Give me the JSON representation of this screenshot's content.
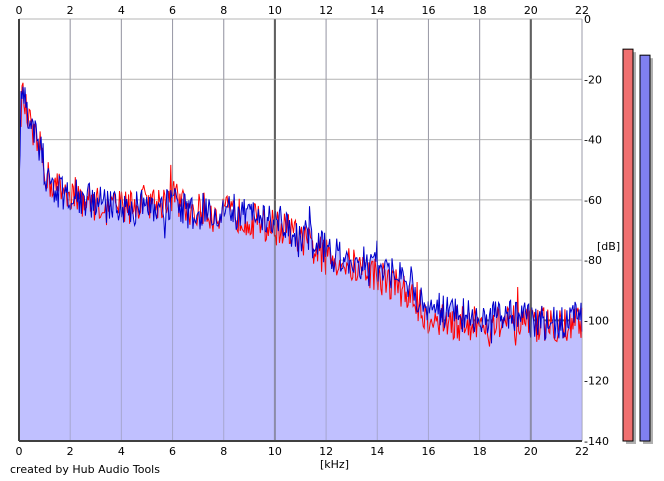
{
  "chart_data": {
    "type": "area",
    "x_unit_label": "[kHz]",
    "y_unit_label": "[dB]",
    "xlim": [
      0,
      22
    ],
    "ylim": [
      -140,
      0
    ],
    "x_ticks": [
      0,
      2,
      4,
      6,
      8,
      10,
      12,
      14,
      16,
      18,
      20,
      22
    ],
    "x_tick_labels": [
      "0",
      "2",
      "4",
      "6",
      "8",
      "10",
      "12",
      "14",
      "16",
      "18",
      "20",
      "22"
    ],
    "y_ticks": [
      0,
      -20,
      -40,
      -60,
      -80,
      -100,
      -120,
      -140
    ],
    "y_tick_labels": [
      "0",
      "-20",
      "-40",
      "-60",
      "-80",
      "-100",
      "-120",
      "-140"
    ],
    "grid": true,
    "x_axis_top": true,
    "y_axis_right": true,
    "series": [
      {
        "color": "#ff0000",
        "x": [
          0,
          0.1,
          0.2,
          0.3,
          0.5,
          0.7,
          0.9,
          1.0,
          1.2,
          1.5,
          2,
          2.5,
          3,
          3.5,
          4,
          4.5,
          5,
          5.5,
          6,
          6.5,
          7,
          7.5,
          8,
          8.5,
          9,
          9.5,
          10,
          10.5,
          11,
          11.5,
          12,
          12.5,
          13,
          13.5,
          14,
          14.5,
          15,
          15.5,
          16,
          16.5,
          17,
          17.5,
          18,
          18.5,
          19,
          19.5,
          20,
          20.5,
          21,
          21.5,
          22
        ],
        "y": [
          -48,
          -25,
          -27,
          -32,
          -37,
          -42,
          -44,
          -50,
          -54,
          -56,
          -57,
          -60,
          -61,
          -63,
          -62,
          -62,
          -60,
          -61,
          -58,
          -63,
          -63,
          -64,
          -64,
          -65,
          -66,
          -68,
          -69,
          -70,
          -73,
          -76,
          -79,
          -80,
          -82,
          -83,
          -85,
          -87,
          -90,
          -94,
          -99,
          -100,
          -101,
          -101,
          -101,
          -101,
          -101,
          -101,
          -102,
          -101,
          -101,
          -101,
          -100
        ]
      },
      {
        "color": "#0000cc",
        "x": [
          0,
          0.1,
          0.2,
          0.3,
          0.5,
          0.7,
          0.9,
          1.0,
          1.2,
          1.5,
          2,
          2.5,
          3,
          3.5,
          4,
          4.5,
          5,
          5.5,
          6,
          6.5,
          7,
          7.5,
          8,
          8.5,
          9,
          9.5,
          10,
          10.5,
          11,
          11.5,
          12,
          12.5,
          13,
          13.5,
          14,
          14.5,
          15,
          15.5,
          16,
          16.5,
          17,
          17.5,
          18,
          18.5,
          19,
          19.5,
          20,
          20.5,
          21,
          21.5,
          22
        ],
        "y": [
          -50,
          -24,
          -26,
          -31,
          -36,
          -40,
          -43,
          -51,
          -55,
          -57,
          -58,
          -60,
          -60,
          -62,
          -62,
          -63,
          -61,
          -62,
          -60,
          -64,
          -64,
          -63,
          -63,
          -64,
          -65,
          -66,
          -66,
          -69,
          -71,
          -74,
          -77,
          -79,
          -80,
          -81,
          -82,
          -84,
          -87,
          -91,
          -95,
          -97,
          -98,
          -98,
          -99,
          -99,
          -99,
          -99,
          -101,
          -101,
          -100,
          -100,
          -98
        ]
      }
    ],
    "fill_color": "#c0c0ff",
    "level_meters": [
      {
        "color": "#f07070",
        "value_db": -10
      },
      {
        "color": "#8080f0",
        "value_db": -12
      }
    ]
  },
  "footer": {
    "credit": "created by Hub Audio Tools"
  }
}
